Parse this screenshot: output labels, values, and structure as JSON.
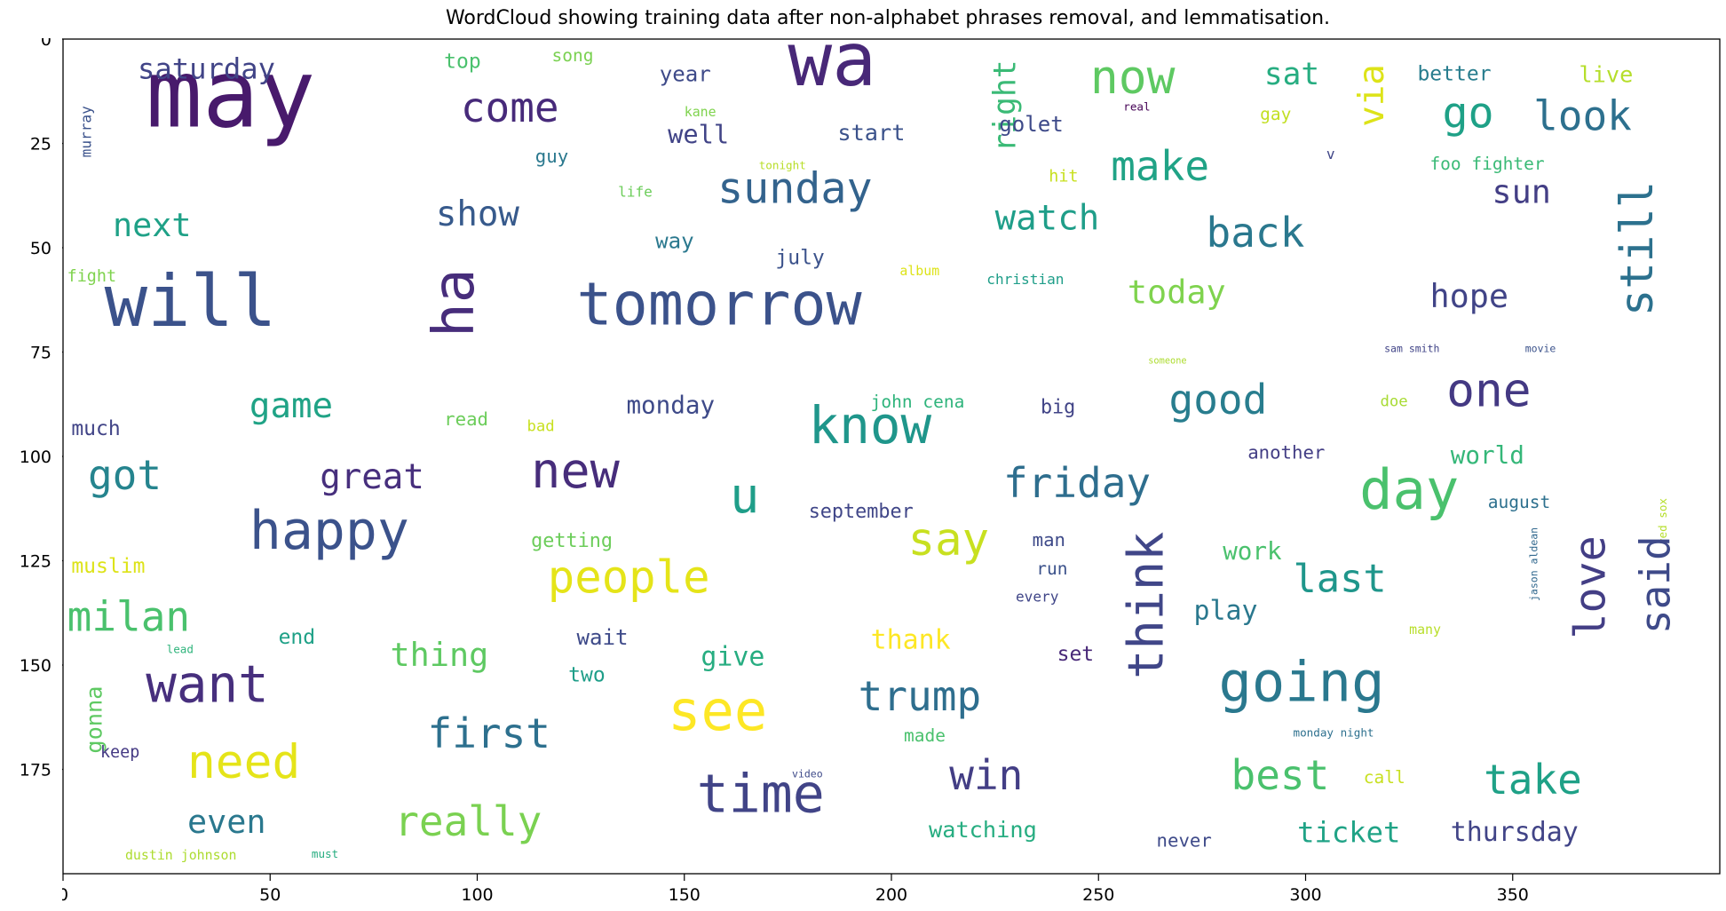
{
  "chart_data": {
    "type": "wordcloud",
    "title": "WordCloud showing training data after non-alphabet phrases removal, and lemmatisation.",
    "xlim": [
      0,
      400
    ],
    "ylim": [
      200,
      0
    ],
    "x_ticks": [
      0,
      50,
      100,
      150,
      200,
      250,
      300,
      350
    ],
    "y_ticks": [
      0,
      25,
      50,
      75,
      100,
      125,
      150,
      175
    ],
    "words": [
      {
        "text": "may",
        "x": 20,
        "y": 3,
        "size": 92,
        "color": "#481a6c"
      },
      {
        "text": "wa",
        "x": 175,
        "y": -3,
        "size": 72,
        "color": "#482878"
      },
      {
        "text": "will",
        "x": 10,
        "y": 55,
        "size": 70,
        "color": "#3b528b"
      },
      {
        "text": "tomorrow",
        "x": 124,
        "y": 57,
        "size": 58,
        "color": "#3b528b"
      },
      {
        "text": "ha",
        "x": 88,
        "y": 55,
        "size": 56,
        "color": "#472d7b",
        "rotate": true
      },
      {
        "text": "now",
        "x": 248,
        "y": 4,
        "size": 46,
        "color": "#5ec962"
      },
      {
        "text": "saturday",
        "x": 18,
        "y": 4,
        "size": 28,
        "color": "#414487"
      },
      {
        "text": "top",
        "x": 92,
        "y": 3,
        "size": 20,
        "color": "#4ac16d"
      },
      {
        "text": "song",
        "x": 118,
        "y": 2,
        "size": 17,
        "color": "#7ad151"
      },
      {
        "text": "year",
        "x": 144,
        "y": 6,
        "size": 21,
        "color": "#3e4a89"
      },
      {
        "text": "kane",
        "x": 150,
        "y": 16,
        "size": 13,
        "color": "#7fd34e"
      },
      {
        "text": "come",
        "x": 96,
        "y": 12,
        "size": 40,
        "color": "#472a7a"
      },
      {
        "text": "well",
        "x": 146,
        "y": 20,
        "size": 25,
        "color": "#414487"
      },
      {
        "text": "start",
        "x": 187,
        "y": 20,
        "size": 22,
        "color": "#3b528b"
      },
      {
        "text": "right",
        "x": 224,
        "y": 5,
        "size": 30,
        "color": "#3aba76",
        "rotate": true
      },
      {
        "text": "golet",
        "x": 226,
        "y": 18,
        "size": 21,
        "color": "#3e4a89"
      },
      {
        "text": "real",
        "x": 256,
        "y": 15,
        "size": 11,
        "color": "#440154"
      },
      {
        "text": "sat",
        "x": 290,
        "y": 5,
        "size": 30,
        "color": "#27ad81"
      },
      {
        "text": "better",
        "x": 327,
        "y": 6,
        "size": 20,
        "color": "#287d8e"
      },
      {
        "text": "live",
        "x": 366,
        "y": 6,
        "size": 22,
        "color": "#b5de2b"
      },
      {
        "text": "via",
        "x": 312,
        "y": 6,
        "size": 34,
        "color": "#dde318",
        "rotate": true
      },
      {
        "text": "go",
        "x": 333,
        "y": 13,
        "size": 42,
        "color": "#1fa187"
      },
      {
        "text": "look",
        "x": 355,
        "y": 14,
        "size": 40,
        "color": "#2d708e"
      },
      {
        "text": "gay",
        "x": 289,
        "y": 16,
        "size": 17,
        "color": "#c2df23"
      },
      {
        "text": "murray",
        "x": 4,
        "y": 16,
        "size": 14,
        "color": "#3b528b",
        "rotate": true
      },
      {
        "text": "guy",
        "x": 114,
        "y": 26,
        "size": 18,
        "color": "#2a788e"
      },
      {
        "text": "tonight",
        "x": 168,
        "y": 29,
        "size": 11,
        "color": "#b8de29"
      },
      {
        "text": "hit",
        "x": 238,
        "y": 31,
        "size": 16,
        "color": "#c8e020"
      },
      {
        "text": "v",
        "x": 305,
        "y": 26,
        "size": 14,
        "color": "#404688"
      },
      {
        "text": "foo fighter",
        "x": 330,
        "y": 28,
        "size": 17,
        "color": "#3aba76"
      },
      {
        "text": "life",
        "x": 134,
        "y": 35,
        "size": 14,
        "color": "#6ccd5a"
      },
      {
        "text": "make",
        "x": 253,
        "y": 26,
        "size": 40,
        "color": "#20a386"
      },
      {
        "text": "sunday",
        "x": 158,
        "y": 31,
        "size": 42,
        "color": "#33638d"
      },
      {
        "text": "show",
        "x": 90,
        "y": 38,
        "size": 34,
        "color": "#375a8c"
      },
      {
        "text": "next",
        "x": 12,
        "y": 41,
        "size": 32,
        "color": "#1fa187"
      },
      {
        "text": "sun",
        "x": 345,
        "y": 33,
        "size": 32,
        "color": "#433e85"
      },
      {
        "text": "still",
        "x": 375,
        "y": 34,
        "size": 44,
        "color": "#2c718e",
        "rotate": true
      },
      {
        "text": "watch",
        "x": 225,
        "y": 39,
        "size": 34,
        "color": "#1f9e89"
      },
      {
        "text": "back",
        "x": 276,
        "y": 42,
        "size": 40,
        "color": "#2a788e"
      },
      {
        "text": "way",
        "x": 143,
        "y": 46,
        "size": 21,
        "color": "#2a788e"
      },
      {
        "text": "july",
        "x": 172,
        "y": 50,
        "size": 20,
        "color": "#3b528b"
      },
      {
        "text": "album",
        "x": 202,
        "y": 54,
        "size": 13,
        "color": "#dde318"
      },
      {
        "text": "christian",
        "x": 223,
        "y": 56,
        "size": 14,
        "color": "#1f9e89"
      },
      {
        "text": "fight",
        "x": 1,
        "y": 55,
        "size": 16,
        "color": "#7fd34e"
      },
      {
        "text": "today",
        "x": 257,
        "y": 57,
        "size": 32,
        "color": "#7fd34e"
      },
      {
        "text": "hope",
        "x": 330,
        "y": 58,
        "size": 32,
        "color": "#414487"
      },
      {
        "text": "sam smith",
        "x": 319,
        "y": 73,
        "size": 10,
        "color": "#414487"
      },
      {
        "text": "movie",
        "x": 353,
        "y": 73,
        "size": 10,
        "color": "#3b528b"
      },
      {
        "text": "someone",
        "x": 262,
        "y": 76,
        "size": 9,
        "color": "#addc30"
      },
      {
        "text": "good",
        "x": 267,
        "y": 82,
        "size": 40,
        "color": "#287d8e"
      },
      {
        "text": "one",
        "x": 334,
        "y": 79,
        "size": 46,
        "color": "#443983"
      },
      {
        "text": "game",
        "x": 45,
        "y": 84,
        "size": 34,
        "color": "#20a386"
      },
      {
        "text": "monday",
        "x": 136,
        "y": 85,
        "size": 24,
        "color": "#3e4a89"
      },
      {
        "text": "john cena",
        "x": 195,
        "y": 85,
        "size": 17,
        "color": "#2fb47c"
      },
      {
        "text": "big",
        "x": 236,
        "y": 86,
        "size": 19,
        "color": "#414487"
      },
      {
        "text": "doe",
        "x": 318,
        "y": 85,
        "size": 15,
        "color": "#a8db34"
      },
      {
        "text": "read",
        "x": 92,
        "y": 89,
        "size": 18,
        "color": "#6ccd5a"
      },
      {
        "text": "bad",
        "x": 112,
        "y": 91,
        "size": 15,
        "color": "#c8e020"
      },
      {
        "text": "much",
        "x": 2,
        "y": 91,
        "size": 20,
        "color": "#414487"
      },
      {
        "text": "know",
        "x": 180,
        "y": 87,
        "size": 50,
        "color": "#1f968b"
      },
      {
        "text": "new",
        "x": 113,
        "y": 98,
        "size": 48,
        "color": "#472d7b"
      },
      {
        "text": "great",
        "x": 62,
        "y": 101,
        "size": 34,
        "color": "#472f7d"
      },
      {
        "text": "got",
        "x": 6,
        "y": 100,
        "size": 40,
        "color": "#25848e"
      },
      {
        "text": "friday",
        "x": 227,
        "y": 102,
        "size": 40,
        "color": "#2e6e8e"
      },
      {
        "text": "another",
        "x": 286,
        "y": 97,
        "size": 18,
        "color": "#433e85"
      },
      {
        "text": "world",
        "x": 335,
        "y": 97,
        "size": 24,
        "color": "#35b779"
      },
      {
        "text": "u",
        "x": 161,
        "y": 104,
        "size": 48,
        "color": "#1f9e89"
      },
      {
        "text": "day",
        "x": 313,
        "y": 102,
        "size": 54,
        "color": "#4ac16d"
      },
      {
        "text": "august",
        "x": 344,
        "y": 109,
        "size": 17,
        "color": "#2d708e"
      },
      {
        "text": "red sox",
        "x": 385,
        "y": 110,
        "size": 11,
        "color": "#b5de2b",
        "rotate": true
      },
      {
        "text": "jason aldean",
        "x": 354,
        "y": 117,
        "size": 10,
        "color": "#31688e",
        "rotate": true
      },
      {
        "text": "september",
        "x": 180,
        "y": 111,
        "size": 19,
        "color": "#404688"
      },
      {
        "text": "man",
        "x": 234,
        "y": 118,
        "size": 18,
        "color": "#3e4a89"
      },
      {
        "text": "happy",
        "x": 45,
        "y": 112,
        "size": 52,
        "color": "#3b528b"
      },
      {
        "text": "getting",
        "x": 113,
        "y": 118,
        "size": 19,
        "color": "#6ccd5a"
      },
      {
        "text": "say",
        "x": 204,
        "y": 115,
        "size": 44,
        "color": "#c8e020"
      },
      {
        "text": "think",
        "x": 256,
        "y": 118,
        "size": 48,
        "color": "#404688",
        "rotate": true
      },
      {
        "text": "work",
        "x": 280,
        "y": 120,
        "size": 24,
        "color": "#4ac16d"
      },
      {
        "text": "run",
        "x": 235,
        "y": 125,
        "size": 17,
        "color": "#3b528b"
      },
      {
        "text": "muslim",
        "x": 2,
        "y": 124,
        "size": 20,
        "color": "#dde318"
      },
      {
        "text": "love",
        "x": 364,
        "y": 119,
        "size": 42,
        "color": "#433e85",
        "rotate": true
      },
      {
        "text": "said",
        "x": 380,
        "y": 119,
        "size": 40,
        "color": "#3e4a89",
        "rotate": true
      },
      {
        "text": "people",
        "x": 117,
        "y": 124,
        "size": 44,
        "color": "#e5e419"
      },
      {
        "text": "every",
        "x": 230,
        "y": 132,
        "size": 14,
        "color": "#404688"
      },
      {
        "text": "last",
        "x": 297,
        "y": 125,
        "size": 38,
        "color": "#1f968b"
      },
      {
        "text": "play",
        "x": 273,
        "y": 134,
        "size": 26,
        "color": "#2a788e"
      },
      {
        "text": "milan",
        "x": 1,
        "y": 134,
        "size": 40,
        "color": "#4ac16d"
      },
      {
        "text": "end",
        "x": 52,
        "y": 141,
        "size": 20,
        "color": "#1fa187"
      },
      {
        "text": "wait",
        "x": 124,
        "y": 141,
        "size": 21,
        "color": "#3e4a89"
      },
      {
        "text": "thank",
        "x": 195,
        "y": 141,
        "size": 26,
        "color": "#fde725"
      },
      {
        "text": "set",
        "x": 240,
        "y": 145,
        "size": 20,
        "color": "#482878"
      },
      {
        "text": "many",
        "x": 325,
        "y": 140,
        "size": 13,
        "color": "#b8de29"
      },
      {
        "text": "lead",
        "x": 25,
        "y": 145,
        "size": 11,
        "color": "#2fb47c"
      },
      {
        "text": "thing",
        "x": 79,
        "y": 144,
        "size": 32,
        "color": "#5ec962"
      },
      {
        "text": "give",
        "x": 154,
        "y": 145,
        "size": 26,
        "color": "#27ad81"
      },
      {
        "text": "two",
        "x": 122,
        "y": 150,
        "size": 20,
        "color": "#1f9e89"
      },
      {
        "text": "going",
        "x": 279,
        "y": 148,
        "size": 54,
        "color": "#2a788e"
      },
      {
        "text": "want",
        "x": 20,
        "y": 149,
        "size": 50,
        "color": "#472f7d"
      },
      {
        "text": "trump",
        "x": 192,
        "y": 153,
        "size": 40,
        "color": "#2e6e8e"
      },
      {
        "text": "gonna",
        "x": 5,
        "y": 155,
        "size": 22,
        "color": "#5ec962",
        "rotate": true
      },
      {
        "text": "see",
        "x": 146,
        "y": 155,
        "size": 54,
        "color": "#fde725"
      },
      {
        "text": "first",
        "x": 88,
        "y": 162,
        "size": 40,
        "color": "#2d708e"
      },
      {
        "text": "made",
        "x": 203,
        "y": 165,
        "size": 17,
        "color": "#4ac16d"
      },
      {
        "text": "monday night",
        "x": 297,
        "y": 165,
        "size": 11,
        "color": "#2d708e"
      },
      {
        "text": "keep",
        "x": 9,
        "y": 169,
        "size": 16,
        "color": "#443983"
      },
      {
        "text": "need",
        "x": 30,
        "y": 168,
        "size": 46,
        "color": "#e5e419"
      },
      {
        "text": "video",
        "x": 176,
        "y": 175,
        "size": 10,
        "color": "#3e4a89"
      },
      {
        "text": "call",
        "x": 314,
        "y": 175,
        "size": 17,
        "color": "#c8e020"
      },
      {
        "text": "win",
        "x": 214,
        "y": 172,
        "size": 40,
        "color": "#433e85"
      },
      {
        "text": "best",
        "x": 282,
        "y": 172,
        "size": 40,
        "color": "#4ac16d"
      },
      {
        "text": "take",
        "x": 343,
        "y": 173,
        "size": 40,
        "color": "#1fa187"
      },
      {
        "text": "time",
        "x": 153,
        "y": 175,
        "size": 52,
        "color": "#414487"
      },
      {
        "text": "even",
        "x": 30,
        "y": 184,
        "size": 32,
        "color": "#2a788e"
      },
      {
        "text": "really",
        "x": 80,
        "y": 183,
        "size": 40,
        "color": "#7ad151"
      },
      {
        "text": "watching",
        "x": 209,
        "y": 187,
        "size": 22,
        "color": "#27ad81"
      },
      {
        "text": "thursday",
        "x": 335,
        "y": 187,
        "size": 26,
        "color": "#414487"
      },
      {
        "text": "ticket",
        "x": 298,
        "y": 187,
        "size": 28,
        "color": "#20a386"
      },
      {
        "text": "never",
        "x": 264,
        "y": 190,
        "size": 18,
        "color": "#3e4a89"
      },
      {
        "text": "dustin johnson",
        "x": 15,
        "y": 194,
        "size": 13,
        "color": "#addc30"
      },
      {
        "text": "must",
        "x": 60,
        "y": 194,
        "size": 11,
        "color": "#27ad81"
      }
    ]
  }
}
